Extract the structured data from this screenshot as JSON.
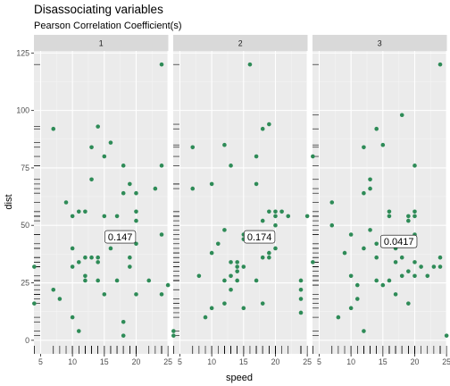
{
  "chart_data": {
    "type": "scatter",
    "title": "Disassociating variables",
    "subtitle": "Pearson Correlation Coefficient(s)",
    "xlabel": "speed",
    "ylabel": "dist",
    "xlim": [
      3.95,
      25.05
    ],
    "ylim": [
      -5.9,
      125.9
    ],
    "x_ticks": [
      5,
      10,
      15,
      20,
      25
    ],
    "y_ticks": [
      0,
      25,
      50,
      75,
      100,
      125
    ],
    "grid": true,
    "rug": true,
    "point_color": "#2E8B57",
    "panels": [
      {
        "strip": "1",
        "correlation": "0.147",
        "label_pos": [
          17.5,
          45
        ],
        "points": [
          [
            4,
            16
          ],
          [
            4,
            32
          ],
          [
            7,
            22
          ],
          [
            7,
            92
          ],
          [
            8,
            18
          ],
          [
            9,
            60
          ],
          [
            10,
            10
          ],
          [
            10,
            32
          ],
          [
            10,
            40
          ],
          [
            10,
            54
          ],
          [
            11,
            4
          ],
          [
            11,
            34
          ],
          [
            11,
            56
          ],
          [
            12,
            26
          ],
          [
            12,
            28
          ],
          [
            12,
            36
          ],
          [
            12,
            56
          ],
          [
            13,
            36
          ],
          [
            13,
            70
          ],
          [
            13,
            84
          ],
          [
            14,
            26
          ],
          [
            14,
            34
          ],
          [
            14,
            36
          ],
          [
            14,
            93
          ],
          [
            15,
            20
          ],
          [
            15,
            54
          ],
          [
            15,
            80
          ],
          [
            16,
            40
          ],
          [
            16,
            86
          ],
          [
            17,
            26
          ],
          [
            17,
            54
          ],
          [
            18,
            2
          ],
          [
            18,
            8
          ],
          [
            18,
            64
          ],
          [
            18,
            76
          ],
          [
            19,
            32
          ],
          [
            19,
            36
          ],
          [
            19,
            46
          ],
          [
            19,
            68
          ],
          [
            20,
            20
          ],
          [
            20,
            42
          ],
          [
            20,
            52
          ],
          [
            20,
            56
          ],
          [
            20,
            64
          ],
          [
            22,
            26
          ],
          [
            23,
            66
          ],
          [
            24,
            20
          ],
          [
            24,
            46
          ],
          [
            24,
            76
          ],
          [
            24,
            120
          ],
          [
            25,
            24
          ]
        ]
      },
      {
        "strip": "2",
        "correlation": "0.174",
        "label_pos": [
          17.5,
          45
        ],
        "points": [
          [
            4,
            2
          ],
          [
            4,
            4
          ],
          [
            7,
            66
          ],
          [
            7,
            84
          ],
          [
            8,
            28
          ],
          [
            9,
            10
          ],
          [
            10,
            14
          ],
          [
            10,
            68
          ],
          [
            10,
            38
          ],
          [
            11,
            42
          ],
          [
            12,
            16
          ],
          [
            12,
            26
          ],
          [
            12,
            48
          ],
          [
            12,
            85
          ],
          [
            13,
            22
          ],
          [
            13,
            28
          ],
          [
            13,
            34
          ],
          [
            13,
            76
          ],
          [
            14,
            32
          ],
          [
            14,
            30
          ],
          [
            14,
            34
          ],
          [
            14,
            26
          ],
          [
            15,
            32
          ],
          [
            15,
            14
          ],
          [
            15,
            44
          ],
          [
            15,
            46
          ],
          [
            16,
            120
          ],
          [
            17,
            26
          ],
          [
            17,
            80
          ],
          [
            17,
            68
          ],
          [
            18,
            36
          ],
          [
            18,
            16
          ],
          [
            18,
            52
          ],
          [
            18,
            92
          ],
          [
            19,
            56
          ],
          [
            19,
            36
          ],
          [
            19,
            38
          ],
          [
            19,
            94
          ],
          [
            20,
            50
          ],
          [
            20,
            56
          ],
          [
            20,
            54
          ],
          [
            20,
            40
          ],
          [
            21,
            56
          ],
          [
            22,
            54
          ],
          [
            24,
            26
          ],
          [
            24,
            18
          ],
          [
            24,
            22
          ],
          [
            24,
            12
          ],
          [
            25,
            54
          ]
        ]
      },
      {
        "strip": "3",
        "correlation": "0.0417",
        "label_pos": [
          17.5,
          43
        ],
        "points": [
          [
            4,
            34
          ],
          [
            4,
            80
          ],
          [
            7,
            50
          ],
          [
            7,
            60
          ],
          [
            8,
            10
          ],
          [
            9,
            38
          ],
          [
            10,
            14
          ],
          [
            10,
            28
          ],
          [
            10,
            46
          ],
          [
            11,
            24
          ],
          [
            11,
            18
          ],
          [
            12,
            4
          ],
          [
            12,
            40
          ],
          [
            12,
            64
          ],
          [
            12,
            84
          ],
          [
            13,
            48
          ],
          [
            13,
            66
          ],
          [
            13,
            70
          ],
          [
            14,
            36
          ],
          [
            14,
            26
          ],
          [
            14,
            42
          ],
          [
            14,
            92
          ],
          [
            15,
            24
          ],
          [
            15,
            85
          ],
          [
            16,
            26
          ],
          [
            16,
            56
          ],
          [
            16,
            54
          ],
          [
            17,
            34
          ],
          [
            17,
            20
          ],
          [
            17,
            40
          ],
          [
            18,
            28
          ],
          [
            18,
            36
          ],
          [
            18,
            98
          ],
          [
            18,
            42
          ],
          [
            19,
            52
          ],
          [
            19,
            16
          ],
          [
            19,
            54
          ],
          [
            19,
            30
          ],
          [
            20,
            34
          ],
          [
            20,
            28
          ],
          [
            20,
            54
          ],
          [
            20,
            56
          ],
          [
            20,
            76
          ],
          [
            20,
            46
          ],
          [
            21,
            32
          ],
          [
            22,
            28
          ],
          [
            23,
            32
          ],
          [
            24,
            120
          ],
          [
            24,
            32
          ],
          [
            24,
            36
          ],
          [
            25,
            2
          ]
        ]
      }
    ]
  }
}
